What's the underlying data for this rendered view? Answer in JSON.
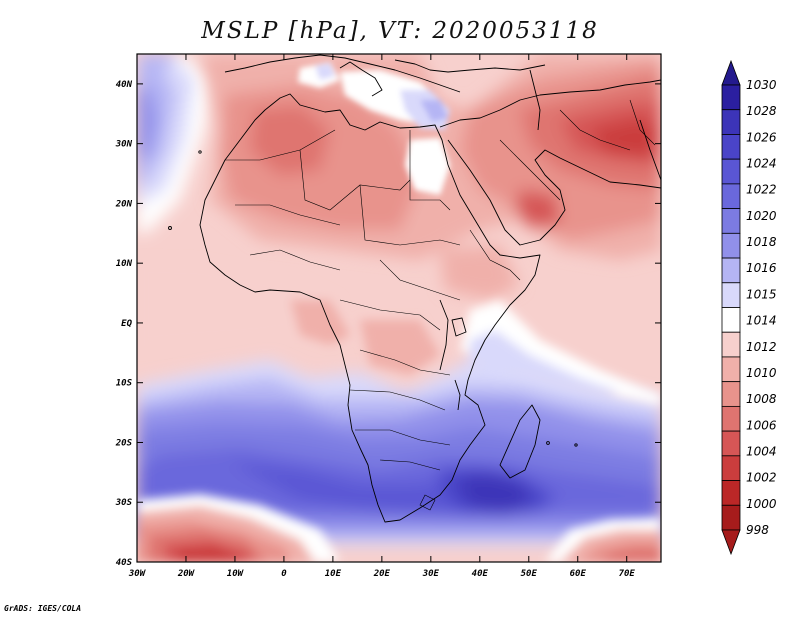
{
  "title": "MSLP [hPa], VT: 2020053118",
  "credit": "GrADS: IGES/COLA",
  "map": {
    "variable": "Mean sea level pressure",
    "units": "hPa",
    "valid_time": "2020053118",
    "lon_range": [
      -30,
      77
    ],
    "lat_range": [
      -40,
      45
    ],
    "lon_ticks": [
      "30W",
      "20W",
      "10W",
      "0",
      "10E",
      "20E",
      "30E",
      "40E",
      "50E",
      "60E",
      "70E"
    ],
    "lat_ticks": [
      "40N",
      "30N",
      "20N",
      "10N",
      "EQ",
      "10S",
      "20S",
      "30S",
      "40S"
    ]
  },
  "colorbar": {
    "levels": [
      "1030",
      "1028",
      "1026",
      "1024",
      "1022",
      "1020",
      "1018",
      "1016",
      "1015",
      "1014",
      "1012",
      "1010",
      "1008",
      "1006",
      "1004",
      "1002",
      "1000",
      "998"
    ],
    "colors": [
      "#2b1fa0",
      "#3c34b8",
      "#4a44c8",
      "#5a56d4",
      "#6a68dc",
      "#7c7be2",
      "#9190ea",
      "#b5b5f4",
      "#d9d9fb",
      "#ffffff",
      "#f7d0cd",
      "#f0b0aa",
      "#e8938c",
      "#df7470",
      "#d65656",
      "#cb3d3d",
      "#bb2727",
      "#a61c1c"
    ]
  }
}
